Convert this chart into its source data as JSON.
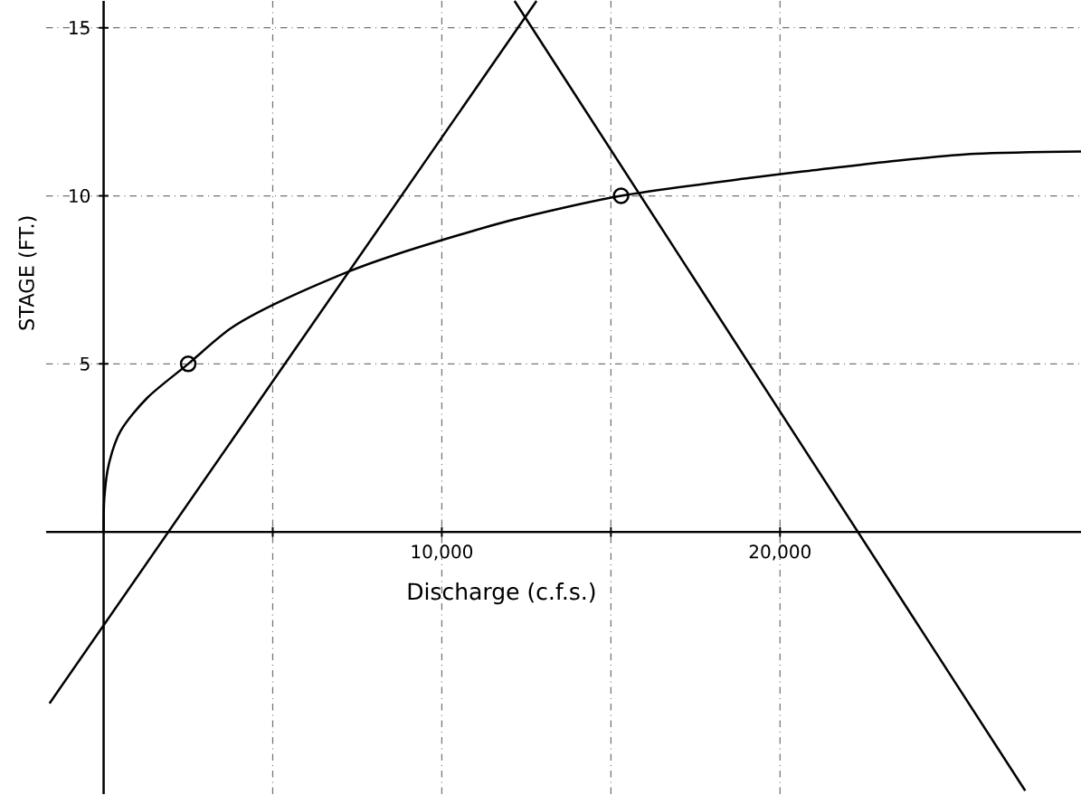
{
  "chart_data": {
    "type": "line",
    "xlabel": "Discharge (c.f.s.)",
    "ylabel": "STAGE (FT.)",
    "xlim": [
      -1700,
      28900
    ],
    "ylim": [
      -7.8,
      15.8
    ],
    "xticks": [
      {
        "value": 5000,
        "label": null
      },
      {
        "value": 10000,
        "label": "10,000"
      },
      {
        "value": 15000,
        "label": null
      },
      {
        "value": 20000,
        "label": "20,000"
      }
    ],
    "yticks": [
      5,
      10,
      15
    ],
    "grid": true,
    "line_style": "solid",
    "series": [
      {
        "color": "#000000",
        "marker": "none",
        "x": [
          0,
          20,
          150,
          500,
          1300,
          2500,
          3750,
          5100,
          7250,
          8600,
          10560,
          12270,
          15300,
          19100,
          21160,
          23200,
          25780,
          28900
        ],
        "values": [
          0,
          1,
          2,
          3,
          4,
          5,
          6.05,
          6.8,
          7.75,
          8.24,
          8.85,
          9.33,
          10,
          10.53,
          10.78,
          11.02,
          11.25,
          11.32
        ]
      },
      {
        "color": "#000000",
        "marker": "none",
        "x": [
          -1600,
          12800
        ],
        "values": [
          -5.1,
          15.8
        ]
      },
      {
        "color": "#000000",
        "marker": "none",
        "x": [
          12150,
          27250
        ],
        "values": [
          15.8,
          -7.7
        ]
      },
      {
        "type": "scatter",
        "color": "#000000",
        "marker": "circle",
        "x": [
          2500,
          15300
        ],
        "values": [
          5,
          10
        ]
      }
    ]
  }
}
